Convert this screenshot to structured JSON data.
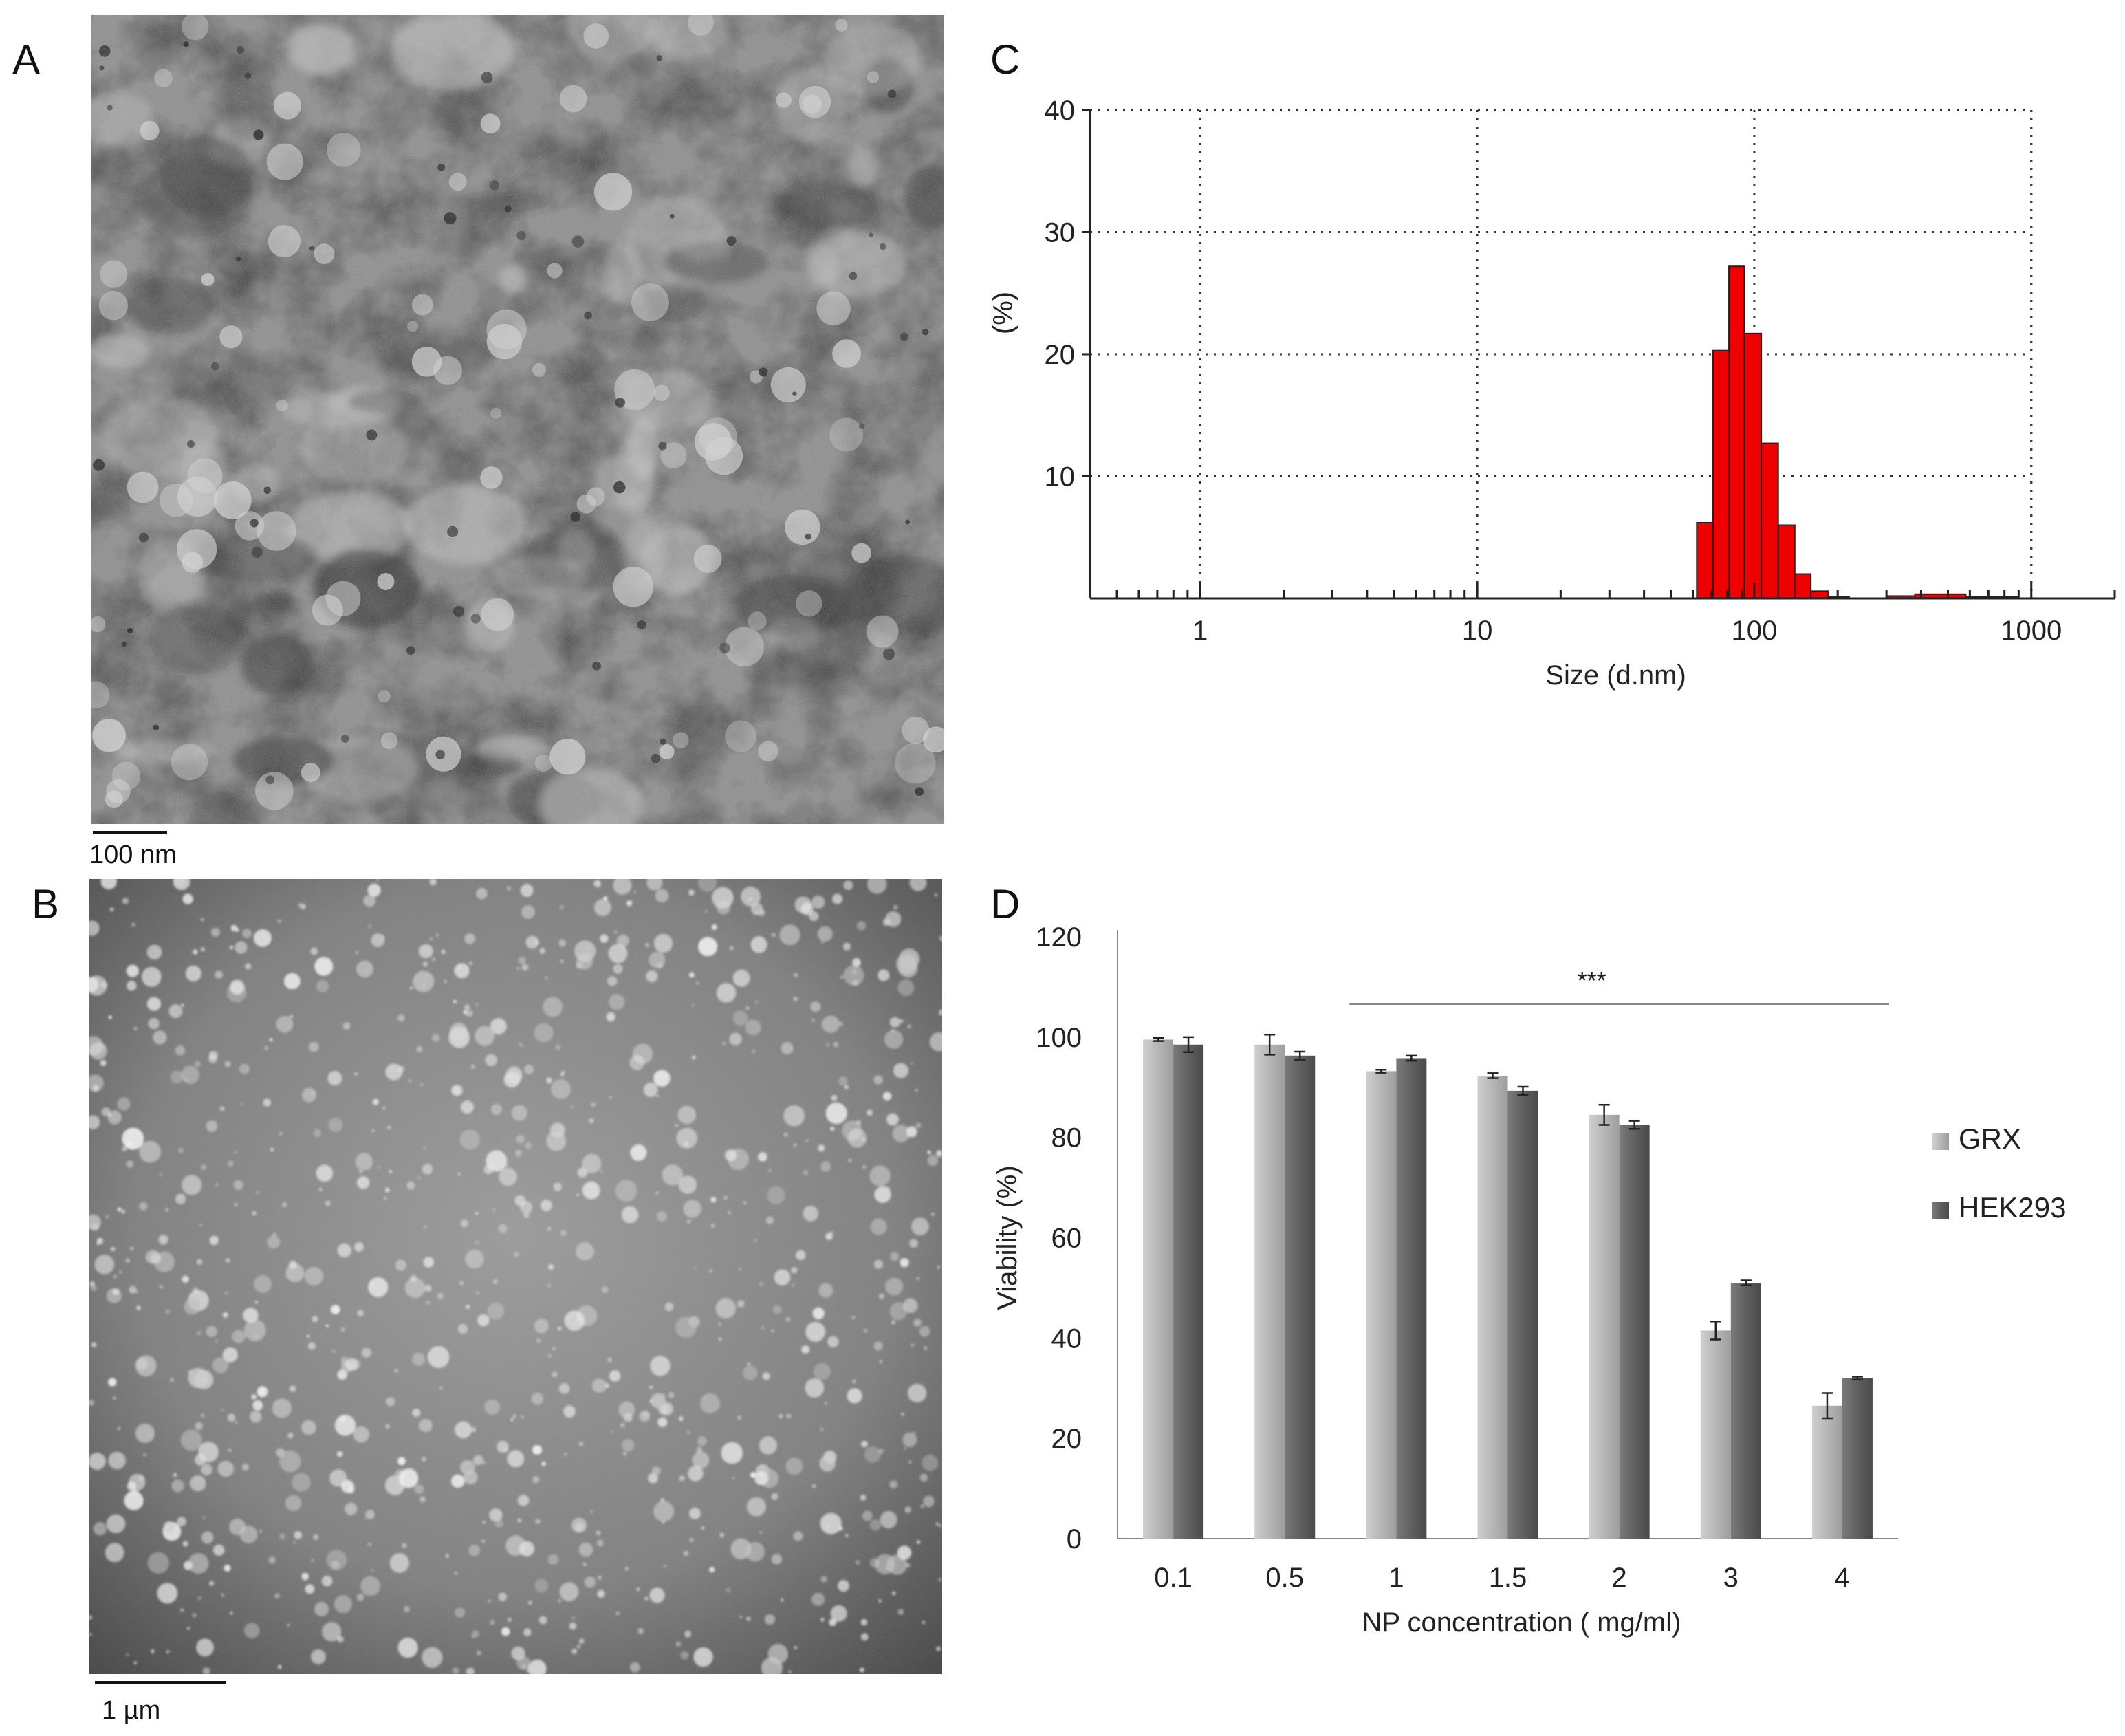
{
  "panels": {
    "a": {
      "letter": "A",
      "scale_label": "100 nm"
    },
    "b": {
      "letter": "B",
      "scale_label": "1 µm"
    },
    "c": {
      "letter": "C"
    },
    "d": {
      "letter": "D"
    }
  },
  "chart_data": [
    {
      "type": "bar",
      "panel": "C",
      "xscale": "log",
      "xlim": [
        0.4,
        2000
      ],
      "ylim": [
        0,
        40
      ],
      "yticks": [
        10,
        20,
        30,
        40
      ],
      "xticks": [
        1,
        10,
        100,
        1000
      ],
      "xtick_labels": [
        "1",
        "10",
        "100",
        "1000"
      ],
      "ytick_labels": [
        "10",
        "20",
        "30",
        "40"
      ],
      "xlabel": "Size (d.nm)",
      "ylabel": "(%)",
      "grid": true,
      "bar_color": "#ee0000",
      "bins": [
        {
          "x0": 62,
          "x1": 71,
          "value": 6.2
        },
        {
          "x0": 71,
          "x1": 81,
          "value": 20.3
        },
        {
          "x0": 81,
          "x1": 92,
          "value": 27.2
        },
        {
          "x0": 92,
          "x1": 106,
          "value": 21.7
        },
        {
          "x0": 106,
          "x1": 122,
          "value": 12.7
        },
        {
          "x0": 122,
          "x1": 140,
          "value": 6.0
        },
        {
          "x0": 140,
          "x1": 160,
          "value": 2.0
        },
        {
          "x0": 160,
          "x1": 185,
          "value": 0.6
        },
        {
          "x0": 185,
          "x1": 220,
          "value": 0.15
        },
        {
          "x0": 300,
          "x1": 380,
          "value": 0.2
        },
        {
          "x0": 380,
          "x1": 580,
          "value": 0.35
        },
        {
          "x0": 580,
          "x1": 900,
          "value": 0.15
        }
      ]
    },
    {
      "type": "bar",
      "panel": "D",
      "categories": [
        "0.1",
        "0.5",
        "1",
        "1.5",
        "2",
        "3",
        "4"
      ],
      "series": [
        {
          "name": "GRX",
          "color": "#b8b8b8",
          "values": [
            99.5,
            98.5,
            93.2,
            92.3,
            84.5,
            41.5,
            26.5
          ],
          "errors": [
            0.3,
            2.0,
            0.3,
            0.5,
            2.0,
            1.8,
            2.5
          ]
        },
        {
          "name": "HEK293",
          "color": "#606060",
          "values": [
            98.5,
            96.3,
            95.8,
            89.3,
            82.5,
            51.0,
            32.0
          ],
          "errors": [
            1.5,
            0.8,
            0.5,
            0.8,
            0.8,
            0.5,
            0.3
          ]
        }
      ],
      "ylim": [
        0,
        120
      ],
      "yticks": [
        0,
        20,
        40,
        60,
        80,
        100,
        120
      ],
      "ytick_labels": [
        "0",
        "20",
        "40",
        "60",
        "80",
        "100",
        "120"
      ],
      "xlabel": "NP concentration ( mg/ml)",
      "ylabel": "Viability (%)",
      "legend_position": "right",
      "significance": {
        "label": "***",
        "from_category": "1",
        "to_category": "4"
      }
    }
  ]
}
